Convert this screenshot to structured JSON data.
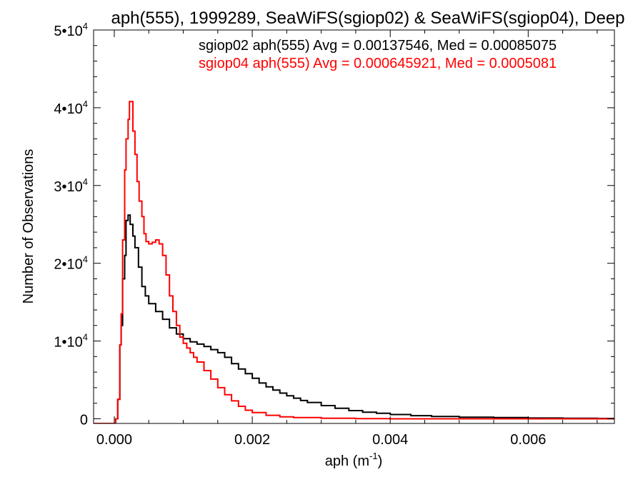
{
  "chart_data": {
    "type": "line",
    "title": "aph(555), 1999289, SeaWiFS(sgiop02) & SeaWiFS(sgiop04), Deep",
    "xlabel": "aph (m",
    "xlabel_sup": "-1",
    "xlabel_close": ")",
    "ylabel": "Number of Observations",
    "xlim": [
      -0.0003,
      0.00725
    ],
    "ylim": [
      -600,
      50000
    ],
    "x_ticks": [
      {
        "value": 0.0,
        "label": "0.000"
      },
      {
        "value": 0.002,
        "label": "0.002"
      },
      {
        "value": 0.004,
        "label": "0.004"
      },
      {
        "value": 0.006,
        "label": "0.006"
      }
    ],
    "y_ticks": [
      {
        "value": 0,
        "label": "0",
        "sup": ""
      },
      {
        "value": 10000,
        "label": "1•10",
        "sup": "4"
      },
      {
        "value": 20000,
        "label": "2•10",
        "sup": "4"
      },
      {
        "value": 30000,
        "label": "3•10",
        "sup": "4"
      },
      {
        "value": 40000,
        "label": "4•10",
        "sup": "4"
      },
      {
        "value": 50000,
        "label": "5•10",
        "sup": "4"
      }
    ],
    "grid": false,
    "legend_position": "top-right",
    "series": [
      {
        "name": "sgiop02",
        "legend": "sgiop02 aph(555) Avg = 0.00137546, Med = 0.00085075",
        "color": "#000000",
        "points": [
          [
            -0.0003,
            -600
          ],
          [
            0.0,
            -600
          ],
          [
            2e-05,
            0
          ],
          [
            5e-05,
            2500
          ],
          [
            8e-05,
            9500
          ],
          [
            0.0001,
            12000
          ],
          [
            0.00012,
            18000
          ],
          [
            0.00015,
            21000
          ],
          [
            0.00017,
            25500
          ],
          [
            0.0002,
            26200
          ],
          [
            0.00023,
            25000
          ],
          [
            0.00027,
            23500
          ],
          [
            0.0003,
            22000
          ],
          [
            0.00035,
            19500
          ],
          [
            0.0004,
            17000
          ],
          [
            0.00045,
            15800
          ],
          [
            0.0005,
            14800
          ],
          [
            0.0006,
            13800
          ],
          [
            0.0007,
            12800
          ],
          [
            0.0008,
            11700
          ],
          [
            0.0009,
            10900
          ],
          [
            0.001,
            10300
          ],
          [
            0.0011,
            9900
          ],
          [
            0.0012,
            9600
          ],
          [
            0.0013,
            9300
          ],
          [
            0.0014,
            8900
          ],
          [
            0.0015,
            8500
          ],
          [
            0.0016,
            7900
          ],
          [
            0.0017,
            7100
          ],
          [
            0.0018,
            6400
          ],
          [
            0.0019,
            5800
          ],
          [
            0.002,
            5200
          ],
          [
            0.0021,
            4600
          ],
          [
            0.0022,
            4100
          ],
          [
            0.0023,
            3700
          ],
          [
            0.0024,
            3300
          ],
          [
            0.0025,
            2950
          ],
          [
            0.0026,
            2650
          ],
          [
            0.0027,
            2350
          ],
          [
            0.0028,
            2100
          ],
          [
            0.003,
            1700
          ],
          [
            0.0032,
            1350
          ],
          [
            0.0034,
            1050
          ],
          [
            0.0036,
            850
          ],
          [
            0.0038,
            700
          ],
          [
            0.004,
            550
          ],
          [
            0.0043,
            400
          ],
          [
            0.0046,
            300
          ],
          [
            0.005,
            200
          ],
          [
            0.0055,
            150
          ],
          [
            0.006,
            100
          ],
          [
            0.0065,
            60
          ],
          [
            0.007,
            40
          ],
          [
            0.00725,
            20
          ]
        ]
      },
      {
        "name": "sgiop04",
        "legend": "sgiop04 aph(555) Avg = 0.000645921, Med = 0.0005081",
        "color": "#ff0000",
        "points": [
          [
            -0.0003,
            -600
          ],
          [
            0.0,
            -600
          ],
          [
            2e-05,
            0
          ],
          [
            5e-05,
            2500
          ],
          [
            8e-05,
            9500
          ],
          [
            0.0001,
            13500
          ],
          [
            0.00012,
            23000
          ],
          [
            0.00015,
            32000
          ],
          [
            0.00017,
            36000
          ],
          [
            0.0002,
            38500
          ],
          [
            0.00022,
            40800
          ],
          [
            0.00025,
            40800
          ],
          [
            0.00027,
            37000
          ],
          [
            0.0003,
            34000
          ],
          [
            0.00033,
            30500
          ],
          [
            0.00036,
            28000
          ],
          [
            0.0004,
            26000
          ],
          [
            0.00043,
            23800
          ],
          [
            0.00046,
            22800
          ],
          [
            0.0005,
            22500
          ],
          [
            0.00055,
            22700
          ],
          [
            0.0006,
            23000
          ],
          [
            0.00065,
            22500
          ],
          [
            0.0007,
            21000
          ],
          [
            0.00075,
            18500
          ],
          [
            0.0008,
            15800
          ],
          [
            0.00085,
            13800
          ],
          [
            0.0009,
            12000
          ],
          [
            0.00095,
            10500
          ],
          [
            0.001,
            9700
          ],
          [
            0.00105,
            9100
          ],
          [
            0.0011,
            8500
          ],
          [
            0.00115,
            7900
          ],
          [
            0.0012,
            7300
          ],
          [
            0.0013,
            6200
          ],
          [
            0.0014,
            5100
          ],
          [
            0.0015,
            4000
          ],
          [
            0.0016,
            3100
          ],
          [
            0.0017,
            2300
          ],
          [
            0.0018,
            1600
          ],
          [
            0.0019,
            1100
          ],
          [
            0.002,
            800
          ],
          [
            0.0022,
            450
          ],
          [
            0.0024,
            250
          ],
          [
            0.0026,
            150
          ],
          [
            0.003,
            60
          ],
          [
            0.0035,
            20
          ],
          [
            0.004,
            0
          ],
          [
            0.00725,
            0
          ]
        ]
      }
    ]
  }
}
